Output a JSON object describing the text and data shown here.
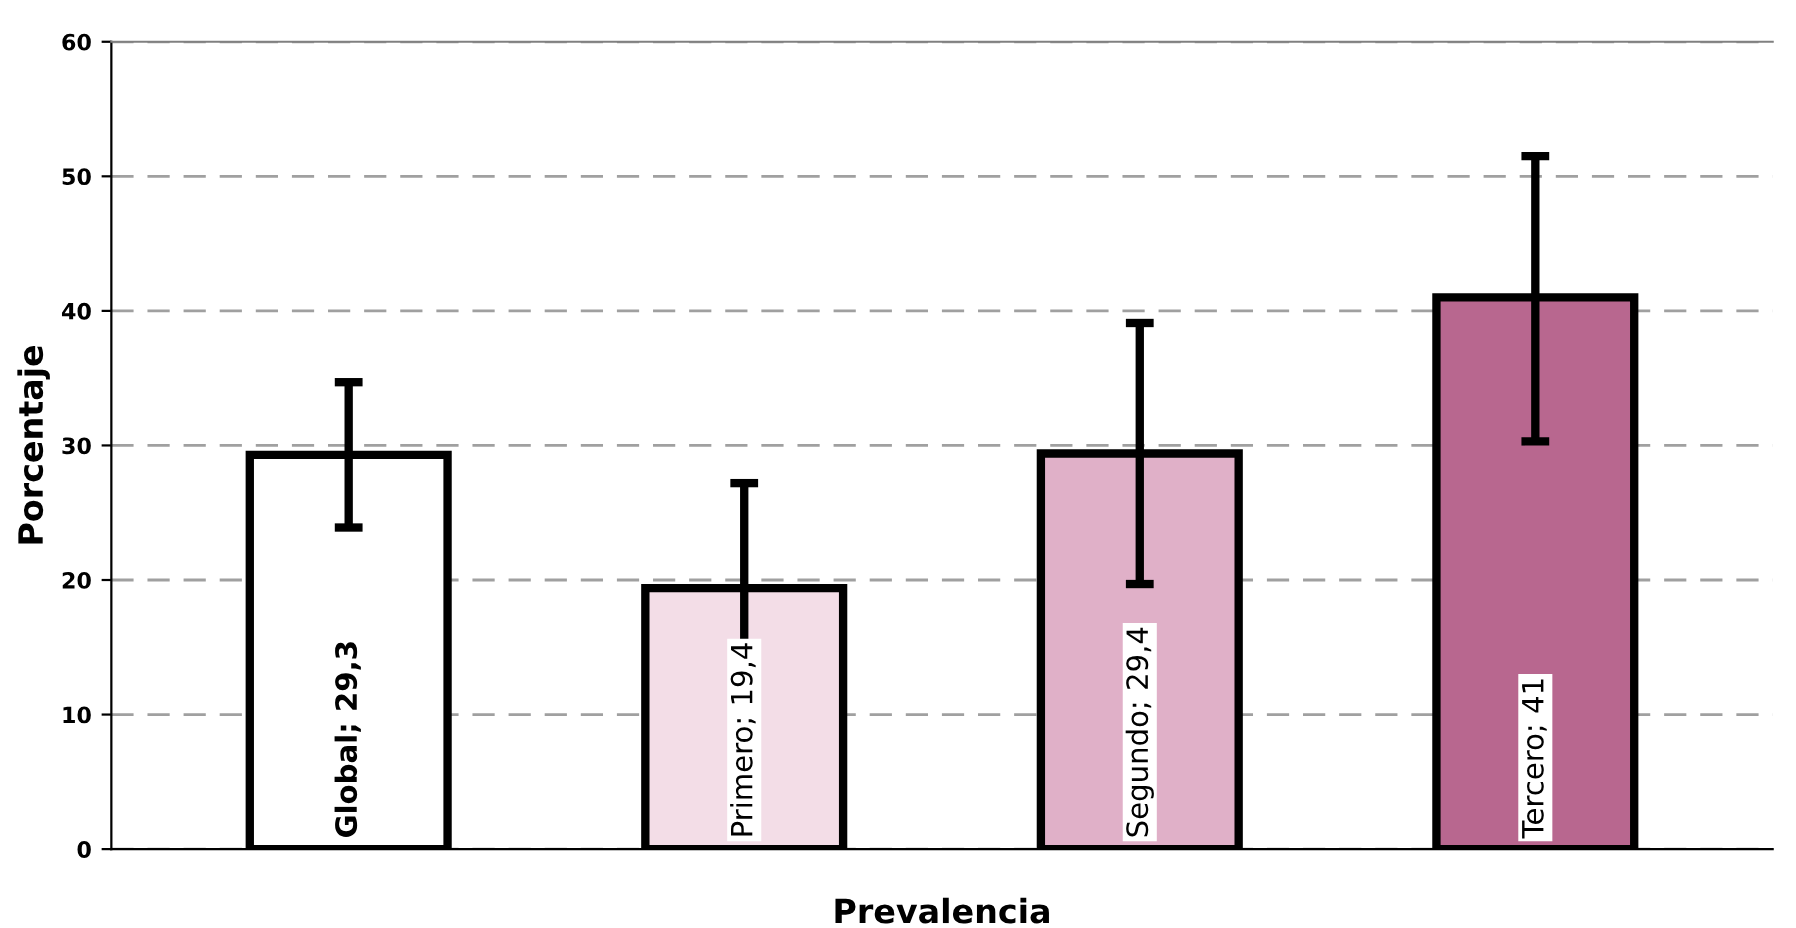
{
  "chart_data": {
    "type": "bar",
    "xlabel": "Prevalencia",
    "ylabel": "Porcentaje",
    "categories": [
      null,
      null,
      null,
      null
    ],
    "values": [
      29.3,
      19.4,
      29.4,
      41
    ],
    "value_labels": [
      "Global; 29,3",
      "Primero; 19,4",
      "Segundo; 29,4",
      "Tercero; 41"
    ],
    "colors": [
      "#ffffff",
      "#f3dde7",
      "#e0b0c8",
      "#b8678f"
    ],
    "errors": [
      [
        23.9,
        34.7
      ],
      [
        11.6,
        27.2
      ],
      [
        19.7,
        39.1
      ],
      [
        30.3,
        51.5
      ]
    ],
    "ylim": [
      0,
      60
    ],
    "yticks": [
      0,
      10,
      20,
      30,
      40,
      50,
      60
    ],
    "grid": "y"
  }
}
